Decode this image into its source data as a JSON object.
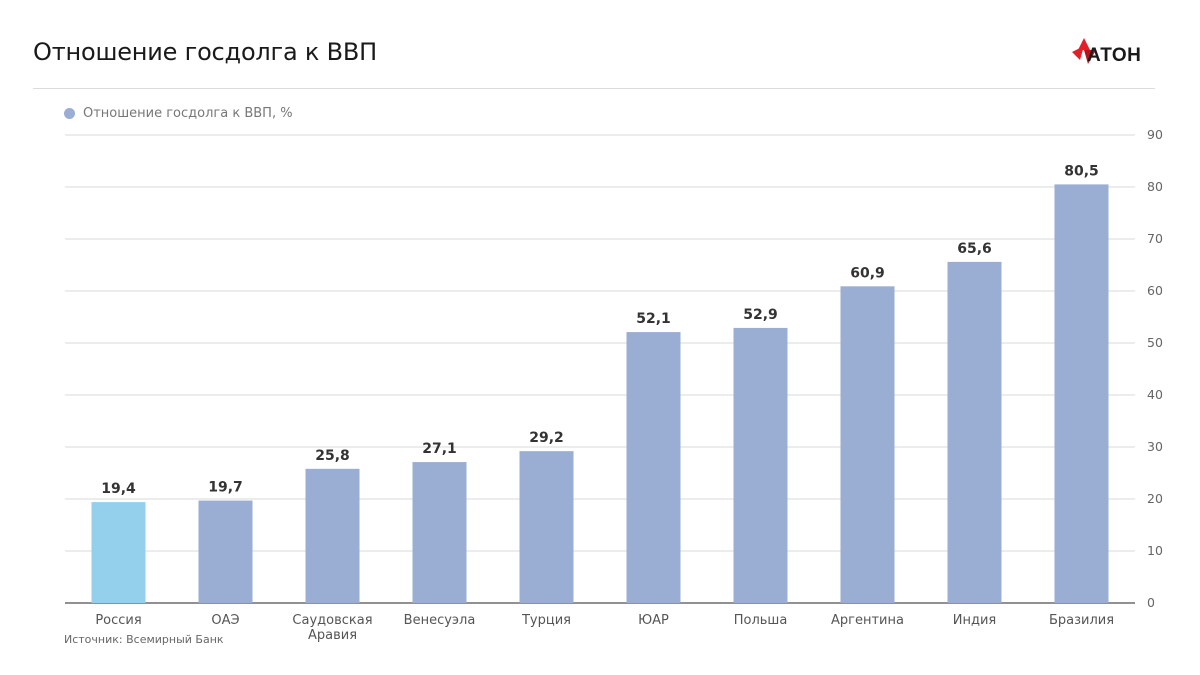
{
  "header": {
    "title": "Отношение госдолга к ВВП",
    "logo_text": "АТОН"
  },
  "legend": {
    "label": "Отношение госдолга к ВВП, %"
  },
  "source": "Источник: Всемирный Банк",
  "colors": {
    "bar": "#9aadd3",
    "highlight": "#94cfec",
    "logo_red": "#e3202a",
    "grid": "#d9d9d9",
    "axis": "#6d6d6d"
  },
  "chart_data": {
    "type": "bar",
    "categories": [
      "Россия",
      "ОАЭ",
      "Саудовская Аравия",
      "Венесуэла",
      "Турция",
      "ЮАР",
      "Польша",
      "Аргентина",
      "Индия",
      "Бразилия"
    ],
    "category_lines": [
      [
        "Россия"
      ],
      [
        "ОАЭ"
      ],
      [
        "Саудовская",
        "Аравия"
      ],
      [
        "Венесуэла"
      ],
      [
        "Турция"
      ],
      [
        "ЮАР"
      ],
      [
        "Польша"
      ],
      [
        "Аргентина"
      ],
      [
        "Индия"
      ],
      [
        "Бразилия"
      ]
    ],
    "series": [
      {
        "name": "Отношение госдолга к ВВП, %",
        "values": [
          19.4,
          19.7,
          25.8,
          27.1,
          29.2,
          52.1,
          52.9,
          60.9,
          65.6,
          80.5
        ]
      }
    ],
    "value_labels": [
      "19,4",
      "19,7",
      "25,8",
      "27,1",
      "29,2",
      "52,1",
      "52,9",
      "60,9",
      "65,6",
      "80,5"
    ],
    "highlight_index": 0,
    "ylim": [
      0,
      90
    ],
    "yticks": [
      0,
      10,
      20,
      30,
      40,
      50,
      60,
      70,
      80,
      90
    ],
    "y_axis_side": "right",
    "grid": true,
    "legend_position": "top-left"
  }
}
